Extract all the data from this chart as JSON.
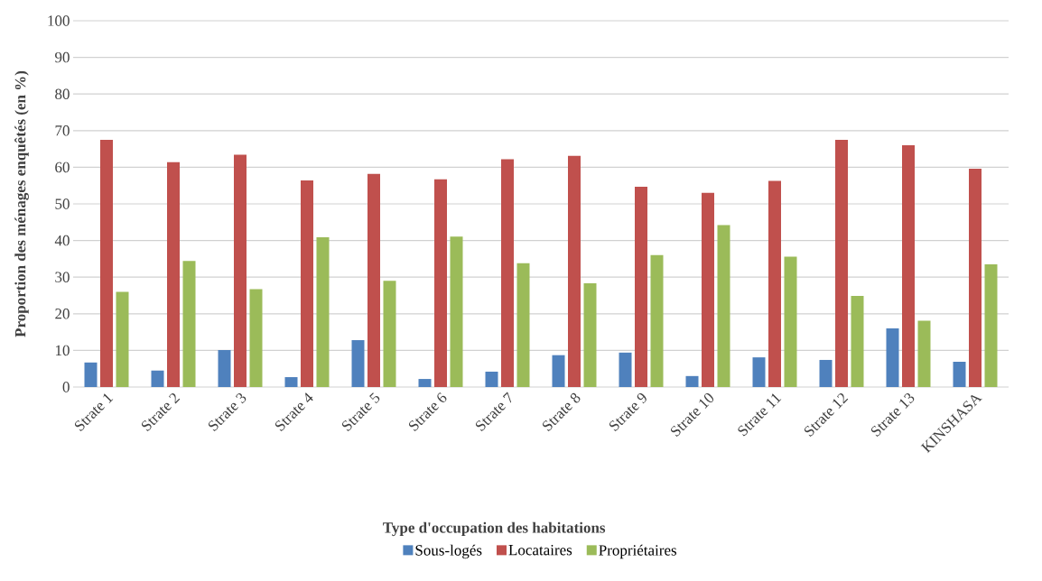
{
  "chart_data": {
    "type": "bar",
    "xlabel": "Type d'occupation des habitations",
    "ylabel": "Proportion des ménages enquêtés (en %)",
    "categories": [
      "Strate 1",
      "Strate 2",
      "Strate 3",
      "Strate 4",
      "Strate 5",
      "Strate 6",
      "Strate 7",
      "Strate 8",
      "Strate 9",
      "Strate 10",
      "Strate 11",
      "Strate 12",
      "Strate 13",
      "KINSHASA"
    ],
    "series": [
      {
        "name": "Sous-logés",
        "color": "#4f81bd",
        "values": [
          6.7,
          4.5,
          10.1,
          2.7,
          12.8,
          2.2,
          4.2,
          8.7,
          9.4,
          3.0,
          8.1,
          7.4,
          16.0,
          6.9
        ]
      },
      {
        "name": "Locataires",
        "color": "#c0504d",
        "values": [
          67.5,
          61.4,
          63.4,
          56.4,
          58.2,
          56.7,
          62.2,
          63.1,
          54.7,
          53.0,
          56.3,
          67.5,
          66.0,
          59.6
        ]
      },
      {
        "name": "Propriétaires",
        "color": "#9bbb59",
        "values": [
          26.0,
          34.4,
          26.7,
          40.9,
          29.0,
          41.1,
          33.8,
          28.3,
          36.0,
          44.2,
          35.6,
          24.9,
          18.1,
          33.5
        ]
      }
    ],
    "ylim": [
      0,
      100
    ],
    "yticks": [
      0,
      10,
      20,
      30,
      40,
      50,
      60,
      70,
      80,
      90,
      100
    ],
    "grid": "y",
    "legend": "bottom"
  }
}
